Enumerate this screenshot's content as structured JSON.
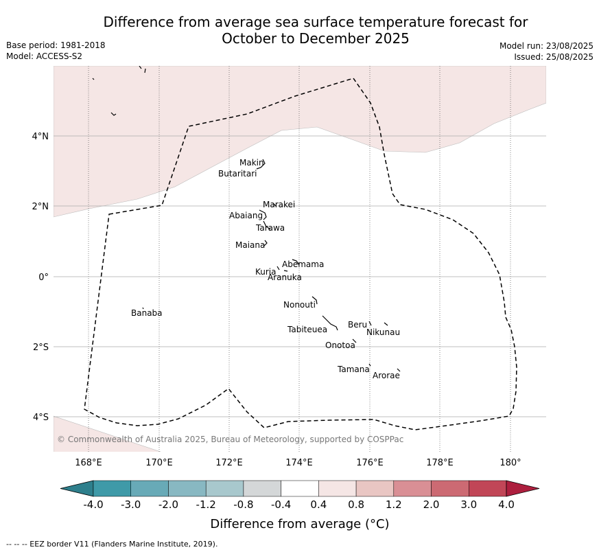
{
  "title_line1": "Difference from average sea surface temperature forecast for",
  "title_line2": "October to December 2025",
  "base_period": "Base period: 1981-2018",
  "model": "Model: ACCESS-S2",
  "model_run": "Model run: 23/08/2025",
  "issued": "Issued: 25/08/2025",
  "copyright": "© Commonwealth of Australia 2025, Bureau of Meteorology, supported by COSPPac",
  "footer": "--  --  -- EEZ border V11 (Flanders Marine Institute, 2019).",
  "map": {
    "lon_labels": [
      "168°E",
      "170°E",
      "172°E",
      "174°E",
      "176°E",
      "178°E",
      "180°"
    ],
    "lat_labels": [
      "4°N",
      "2°N",
      "0°",
      "2°S",
      "4°S"
    ],
    "anomaly_fill_color": "#f5e6e5",
    "border_color": "#000000",
    "places": [
      {
        "name": "Makin"
      },
      {
        "name": "Butaritari"
      },
      {
        "name": "Marakei"
      },
      {
        "name": "Abaiang"
      },
      {
        "name": "Tarawa"
      },
      {
        "name": "Maiana"
      },
      {
        "name": "Abemama"
      },
      {
        "name": "Kuria"
      },
      {
        "name": "Aranuka"
      },
      {
        "name": "Nonouti"
      },
      {
        "name": "Banaba"
      },
      {
        "name": "Beru"
      },
      {
        "name": "Nikunau"
      },
      {
        "name": "Tabiteuea"
      },
      {
        "name": "Onotoa"
      },
      {
        "name": "Tamana"
      },
      {
        "name": "Arorae"
      }
    ]
  },
  "colorbar": {
    "label": "Difference from average (°C)",
    "ticks": [
      "-4.0",
      "-3.0",
      "-2.0",
      "-1.2",
      "-0.8",
      "-0.4",
      "0.4",
      "0.8",
      "1.2",
      "2.0",
      "3.0",
      "4.0"
    ],
    "colors": [
      "#3f9aa8",
      "#68aab7",
      "#88b8c2",
      "#a8c8cd",
      "#d4d7d8",
      "#ffffff",
      "#f5e6e5",
      "#e9c6c3",
      "#d98f95",
      "#cc6a73",
      "#c14657"
    ],
    "low_extend_color": "#2e7f8c",
    "high_extend_color": "#ad1f3e"
  }
}
